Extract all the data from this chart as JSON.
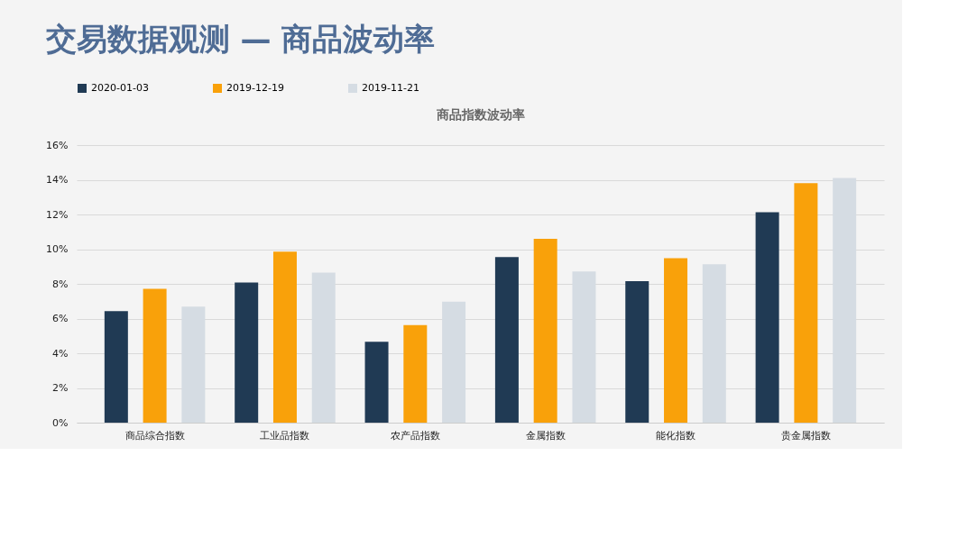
{
  "chart_data": {
    "type": "bar",
    "title": "交易数据观测 — 商品波动率",
    "subtitle": "商品指数波动率",
    "categories": [
      "商品综合指数",
      "工业品指数",
      "农产品指数",
      "金属指数",
      "能化指数",
      "贵金属指数"
    ],
    "series": [
      {
        "name": "2020-01-03",
        "color": "#203a54",
        "values": [
          6.43,
          8.08,
          4.66,
          9.55,
          8.15,
          12.13
        ]
      },
      {
        "name": "2019-12-19",
        "color": "#f9a10a",
        "values": [
          7.71,
          9.86,
          5.62,
          10.6,
          9.48,
          13.81
        ]
      },
      {
        "name": "2019-11-21",
        "color": "#d5dce3",
        "values": [
          6.69,
          8.65,
          6.97,
          8.72,
          9.13,
          14.1
        ]
      }
    ],
    "ylim": [
      0,
      16
    ],
    "yticks": [
      {
        "value": 0,
        "label": "0%"
      },
      {
        "value": 2,
        "label": "2%"
      },
      {
        "value": 4,
        "label": "4%"
      },
      {
        "value": 6,
        "label": "6%"
      },
      {
        "value": 8,
        "label": "8%"
      },
      {
        "value": 10,
        "label": "10%"
      },
      {
        "value": 12,
        "label": "12%"
      },
      {
        "value": 14,
        "label": "14%"
      },
      {
        "value": 16,
        "label": "16%"
      }
    ],
    "grid": "y",
    "legend": "top"
  }
}
